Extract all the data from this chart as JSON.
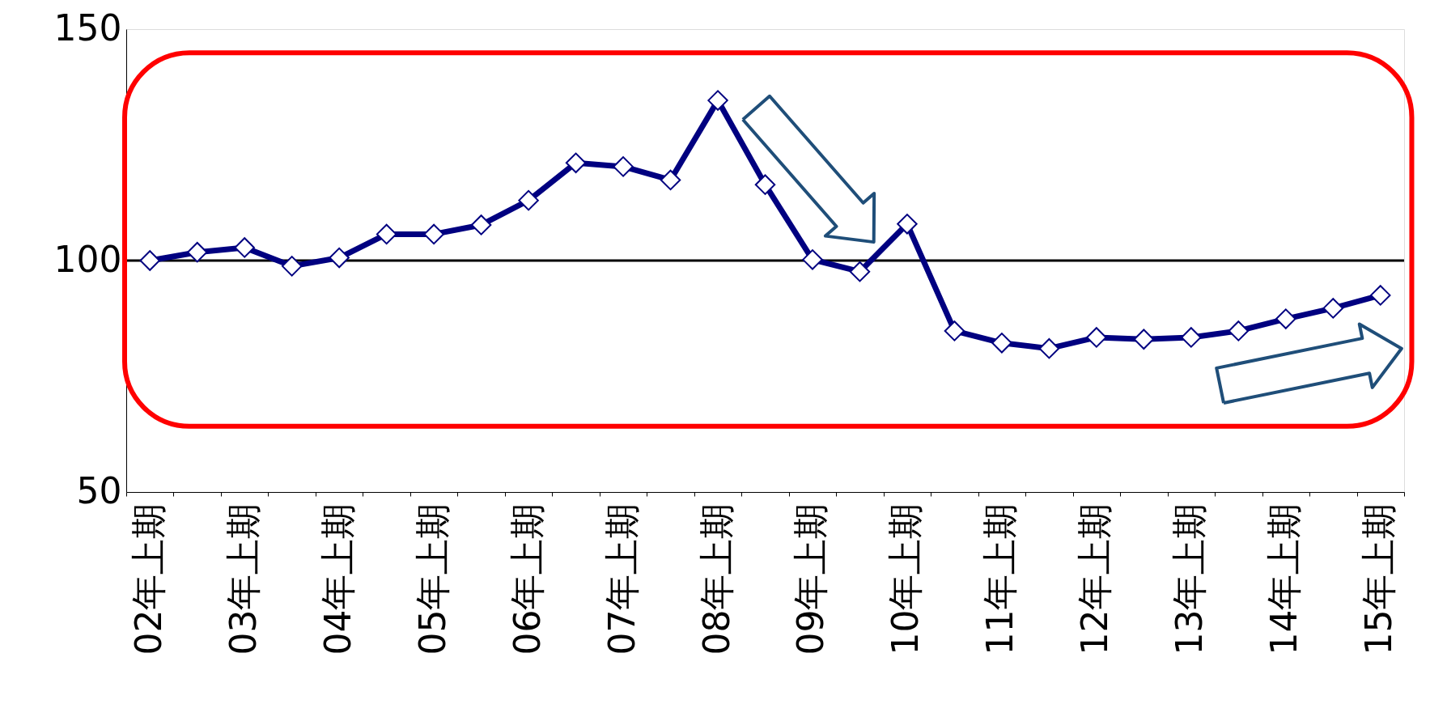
{
  "chart_data": {
    "type": "line",
    "categories": [
      "02年上期",
      null,
      "03年上期",
      null,
      "04年上期",
      null,
      "05年上期",
      null,
      "06年上期",
      null,
      "07年上期",
      null,
      "08年上期",
      null,
      "09年上期",
      null,
      "10年上期",
      null,
      "11年上期",
      null,
      "12年上期",
      null,
      "13年上期",
      null,
      "14年上期",
      null,
      "15年上期"
    ],
    "values": [
      100,
      101.8,
      102.8,
      98.8,
      100.6,
      105.7,
      105.7,
      107.7,
      113,
      121.1,
      120.3,
      117.4,
      134.6,
      116.4,
      100.2,
      97.6,
      107.9,
      84.8,
      82.2,
      81,
      83.4,
      83,
      83.4,
      84.8,
      87.4,
      89.7,
      92.5
    ],
    "color": "#000080",
    "marker": "diamond",
    "line_style": "solid",
    "ylim": [
      50,
      150
    ],
    "yticks": [
      50,
      100,
      150
    ],
    "grid": false,
    "ref_lines": [
      {
        "axis": "y",
        "value": 100,
        "color": "#000000"
      }
    ]
  }
}
